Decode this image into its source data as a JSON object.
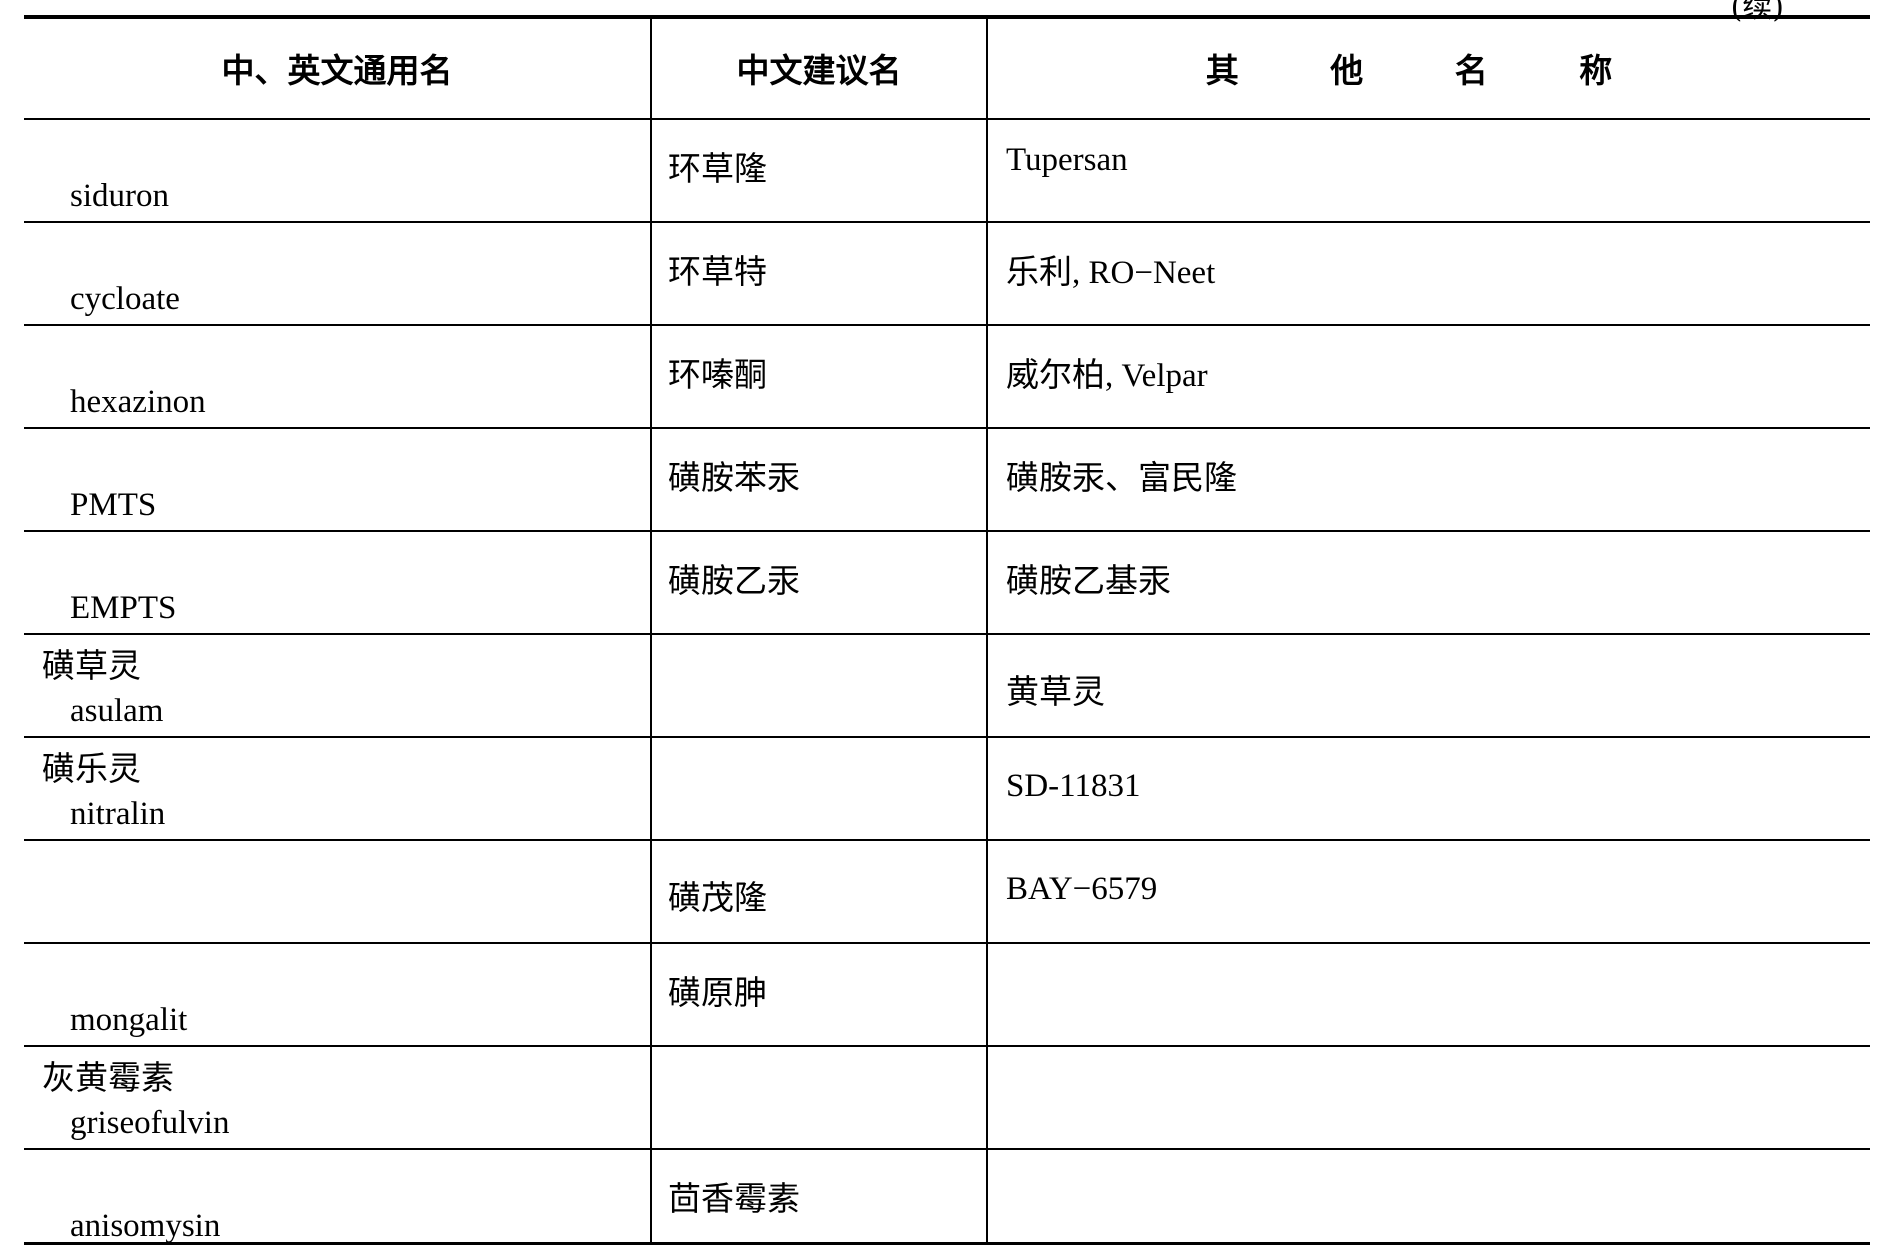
{
  "continued_label": "(续)",
  "headers": [
    "中、英文通用名",
    "中文建议名",
    "其 他 名 称"
  ],
  "rows": [
    {
      "zh": "",
      "en": "siduron",
      "suggested": "环草隆",
      "other": "Tupersan"
    },
    {
      "zh": "",
      "en": "cycloate",
      "suggested": "环草特",
      "other": "乐利, RO−Neet"
    },
    {
      "zh": "",
      "en": "hexazinon",
      "suggested": "环嗪酮",
      "other": "威尔柏, Velpar"
    },
    {
      "zh": "",
      "en": "PMTS",
      "suggested": "磺胺苯汞",
      "other": "磺胺汞、富民隆"
    },
    {
      "zh": "",
      "en": "EMPTS",
      "suggested": "磺胺乙汞",
      "other": "磺胺乙基汞"
    },
    {
      "zh": "磺草灵",
      "en": "asulam",
      "suggested": "",
      "other": "黄草灵"
    },
    {
      "zh": "磺乐灵",
      "en": "nitralin",
      "suggested": "",
      "other": "SD-11831"
    },
    {
      "zh": "",
      "en": "",
      "suggested": "磺茂隆",
      "other": "BAY−6579"
    },
    {
      "zh": "",
      "en": "mongalit",
      "suggested": "磺原胂",
      "other": ""
    },
    {
      "zh": "灰黄霉素",
      "en": "griseofulvin",
      "suggested": "",
      "other": ""
    },
    {
      "zh": "",
      "en": "anisomysin",
      "suggested": "茴香霉素",
      "other": ""
    }
  ]
}
